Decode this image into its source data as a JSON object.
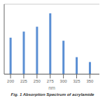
{
  "chart_data": {
    "type": "bar",
    "title": "Fig. 1 Absorption Spectrum of acrylamide",
    "xlabel": "nm",
    "x": [
      200,
      225,
      250,
      275,
      300,
      325,
      350
    ],
    "values": [
      0.6,
      0.7,
      0.78,
      1.0,
      0.55,
      0.28,
      0.2
    ],
    "color": "#5b8fd4",
    "xlim": [
      188,
      368
    ],
    "xticks": [
      200,
      225,
      250,
      275,
      300,
      325,
      350
    ],
    "ylim": [
      0,
      1.15
    ],
    "yticks": [
      0,
      0.125,
      0.25,
      0.375,
      0.5,
      0.625,
      0.75,
      0.875,
      1.0
    ],
    "grid": true,
    "tick_labels": "x"
  }
}
